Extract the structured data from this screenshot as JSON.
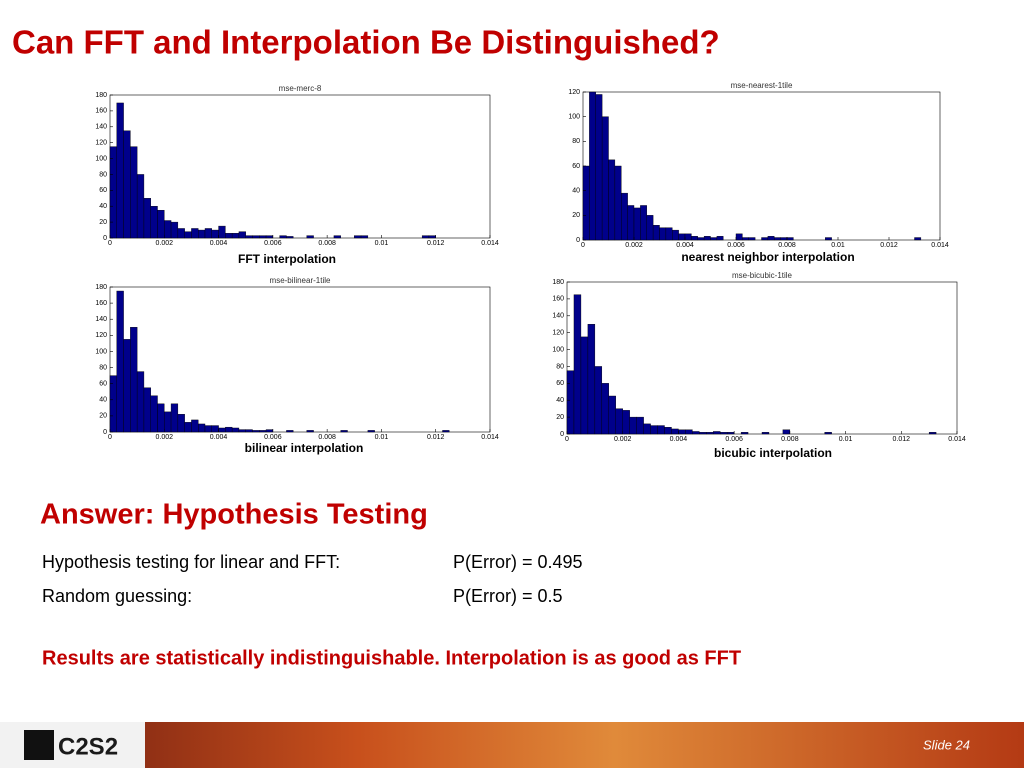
{
  "title": "Can FFT and Interpolation Be Distinguished?",
  "chart_data": [
    {
      "type": "histogram",
      "title": "mse-merc-8",
      "caption": "FFT interpolation",
      "color": "#00008b",
      "bins": [
        0,
        0.00025,
        0.0005,
        0.00075,
        0.001,
        0.00125,
        0.0015,
        0.00175,
        0.002,
        0.00225,
        0.0025,
        0.00275,
        0.003,
        0.00325,
        0.0035,
        0.00375,
        0.004,
        0.00425,
        0.0045,
        0.00475,
        0.005,
        0.00525,
        0.0055,
        0.00575,
        0.006,
        0.00625,
        0.0065,
        0.00675,
        0.007,
        0.00725,
        0.0075,
        0.00775,
        0.008,
        0.00825,
        0.0085,
        0.00875,
        0.009,
        0.00925,
        0.0095,
        0.00975,
        0.01,
        0.01025,
        0.0105,
        0.01075,
        0.011,
        0.01125,
        0.0115,
        0.01175,
        0.012,
        0.01225,
        0.0125,
        0.01275,
        0.013,
        0.01325,
        0.0135,
        0.01375,
        0.014
      ],
      "counts": [
        115,
        170,
        135,
        115,
        80,
        50,
        40,
        35,
        22,
        20,
        12,
        8,
        12,
        10,
        12,
        10,
        15,
        6,
        6,
        8,
        3,
        3,
        3,
        3,
        0,
        3,
        2,
        0,
        0,
        3,
        0,
        0,
        0,
        3,
        0,
        0,
        3,
        3,
        0,
        0,
        0,
        0,
        0,
        0,
        0,
        0,
        3,
        3,
        0,
        0,
        0,
        0,
        0,
        0,
        0,
        0
      ],
      "xlim": [
        0,
        0.014
      ],
      "xticks": [
        0,
        0.002,
        0.004,
        0.006,
        0.008,
        0.01,
        0.012,
        0.014
      ],
      "ylim": [
        0,
        180
      ],
      "yticks": [
        0,
        20,
        40,
        60,
        80,
        100,
        120,
        140,
        160,
        180
      ]
    },
    {
      "type": "histogram",
      "title": "mse-nearest-1tile",
      "caption": "nearest neighbor interpolation",
      "color": "#00008b",
      "bins": [
        0,
        0.00025,
        0.0005,
        0.00075,
        0.001,
        0.00125,
        0.0015,
        0.00175,
        0.002,
        0.00225,
        0.0025,
        0.00275,
        0.003,
        0.00325,
        0.0035,
        0.00375,
        0.004,
        0.00425,
        0.0045,
        0.00475,
        0.005,
        0.00525,
        0.0055,
        0.00575,
        0.006,
        0.00625,
        0.0065,
        0.00675,
        0.007,
        0.00725,
        0.0075,
        0.00775,
        0.008,
        0.00825,
        0.0085,
        0.00875,
        0.009,
        0.00925,
        0.0095,
        0.00975,
        0.01,
        0.01025,
        0.0105,
        0.01075,
        0.011,
        0.01125,
        0.0115,
        0.01175,
        0.012,
        0.01225,
        0.0125,
        0.01275,
        0.013,
        0.01325,
        0.0135,
        0.01375,
        0.014
      ],
      "counts": [
        60,
        120,
        118,
        100,
        65,
        60,
        38,
        28,
        26,
        28,
        20,
        12,
        10,
        10,
        8,
        5,
        5,
        3,
        2,
        3,
        2,
        3,
        0,
        0,
        5,
        2,
        2,
        0,
        2,
        3,
        2,
        2,
        2,
        0,
        0,
        0,
        0,
        0,
        2,
        0,
        0,
        0,
        0,
        0,
        0,
        0,
        0,
        0,
        0,
        0,
        0,
        0,
        2,
        0,
        0,
        0
      ],
      "xlim": [
        0,
        0.014
      ],
      "xticks": [
        0,
        0.002,
        0.004,
        0.006,
        0.008,
        0.01,
        0.012,
        0.014
      ],
      "ylim": [
        0,
        120
      ],
      "yticks": [
        0,
        20,
        40,
        60,
        80,
        100,
        120
      ]
    },
    {
      "type": "histogram",
      "title": "mse-bilinear-1tile",
      "caption": "bilinear interpolation",
      "color": "#00008b",
      "bins": [
        0,
        0.00025,
        0.0005,
        0.00075,
        0.001,
        0.00125,
        0.0015,
        0.00175,
        0.002,
        0.00225,
        0.0025,
        0.00275,
        0.003,
        0.00325,
        0.0035,
        0.00375,
        0.004,
        0.00425,
        0.0045,
        0.00475,
        0.005,
        0.00525,
        0.0055,
        0.00575,
        0.006,
        0.00625,
        0.0065,
        0.00675,
        0.007,
        0.00725,
        0.0075,
        0.00775,
        0.008,
        0.00825,
        0.0085,
        0.00875,
        0.009,
        0.00925,
        0.0095,
        0.00975,
        0.01,
        0.01025,
        0.0105,
        0.01075,
        0.011,
        0.01125,
        0.0115,
        0.01175,
        0.012,
        0.01225,
        0.0125,
        0.01275,
        0.013,
        0.01325,
        0.0135,
        0.01375,
        0.014
      ],
      "counts": [
        70,
        175,
        115,
        130,
        75,
        55,
        45,
        35,
        25,
        35,
        22,
        12,
        15,
        10,
        8,
        8,
        5,
        6,
        5,
        3,
        3,
        2,
        2,
        3,
        0,
        0,
        2,
        0,
        0,
        2,
        0,
        0,
        0,
        0,
        2,
        0,
        0,
        0,
        2,
        0,
        0,
        0,
        0,
        0,
        0,
        0,
        0,
        0,
        0,
        2,
        0,
        0,
        0,
        0,
        0,
        0
      ],
      "xlim": [
        0,
        0.014
      ],
      "xticks": [
        0,
        0.002,
        0.004,
        0.006,
        0.008,
        0.01,
        0.012,
        0.014
      ],
      "ylim": [
        0,
        180
      ],
      "yticks": [
        0,
        20,
        40,
        60,
        80,
        100,
        120,
        140,
        160,
        180
      ]
    },
    {
      "type": "histogram",
      "title": "mse-bicubic-1tile",
      "caption": "bicubic interpolation",
      "color": "#00008b",
      "bins": [
        0,
        0.00025,
        0.0005,
        0.00075,
        0.001,
        0.00125,
        0.0015,
        0.00175,
        0.002,
        0.00225,
        0.0025,
        0.00275,
        0.003,
        0.00325,
        0.0035,
        0.00375,
        0.004,
        0.00425,
        0.0045,
        0.00475,
        0.005,
        0.00525,
        0.0055,
        0.00575,
        0.006,
        0.00625,
        0.0065,
        0.00675,
        0.007,
        0.00725,
        0.0075,
        0.00775,
        0.008,
        0.00825,
        0.0085,
        0.00875,
        0.009,
        0.00925,
        0.0095,
        0.00975,
        0.01,
        0.01025,
        0.0105,
        0.01075,
        0.011,
        0.01125,
        0.0115,
        0.01175,
        0.012,
        0.01225,
        0.0125,
        0.01275,
        0.013,
        0.01325,
        0.0135,
        0.01375,
        0.014
      ],
      "counts": [
        75,
        165,
        115,
        130,
        80,
        60,
        45,
        30,
        28,
        20,
        20,
        12,
        10,
        10,
        8,
        6,
        5,
        5,
        3,
        2,
        2,
        3,
        2,
        2,
        0,
        2,
        0,
        0,
        2,
        0,
        0,
        5,
        0,
        0,
        0,
        0,
        0,
        2,
        0,
        0,
        0,
        0,
        0,
        0,
        0,
        0,
        0,
        0,
        0,
        0,
        0,
        0,
        2,
        0,
        0,
        0
      ],
      "xlim": [
        0,
        0.014
      ],
      "xticks": [
        0,
        0.002,
        0.004,
        0.006,
        0.008,
        0.01,
        0.012,
        0.014
      ],
      "ylim": [
        0,
        180
      ],
      "yticks": [
        0,
        20,
        40,
        60,
        80,
        100,
        120,
        140,
        160,
        180
      ]
    }
  ],
  "answer": {
    "heading": "Answer: Hypothesis Testing",
    "rows": [
      [
        "Hypothesis testing for linear and FFT:",
        "P(Error) = 0.495"
      ],
      [
        "Random guessing:",
        "P(Error) = 0.5"
      ]
    ],
    "conclusion": "Results are statistically indistinguishable. Interpolation is as good as FFT"
  },
  "footer": {
    "logo": "C2S2",
    "slide": "Slide 24"
  }
}
